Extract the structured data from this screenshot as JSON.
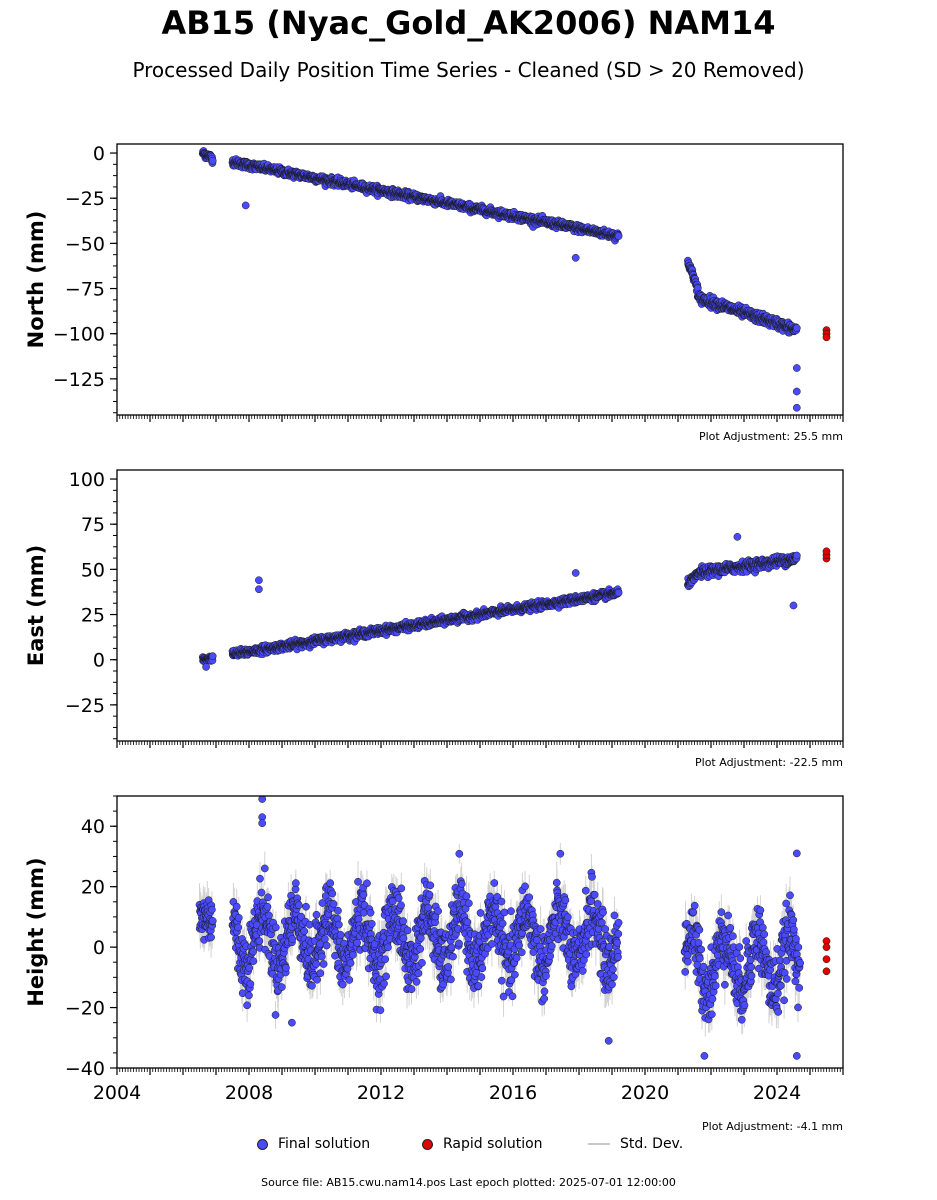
{
  "title": "AB15 (Nyac_Gold_AK2006) NAM14",
  "subtitle": "Processed Daily Position Time Series - Cleaned (SD > 20 Removed)",
  "legend": {
    "final": "Final solution",
    "rapid": "Rapid solution",
    "stddev": "Std. Dev."
  },
  "source_text": "Source file: AB15.cwu.nam14.pos  Last epoch plotted: 2025-07-01 12:00:00",
  "colors": {
    "final": "#4a4aff",
    "rapid": "#e00000",
    "stddev": "#c8c8c8",
    "edge": "#1a1a1a"
  },
  "chart_data": [
    {
      "type": "scatter",
      "ylabel": "North (mm)",
      "adjustment": "Plot Adjustment: 25.5 mm",
      "xlim": [
        2004,
        2026
      ],
      "ylim": [
        -145,
        5
      ],
      "yticks": [
        0,
        -25,
        -50,
        -75,
        -100,
        -125
      ],
      "final_segments": [
        {
          "x": [
            2006.6,
            2006.9
          ],
          "y": [
            0,
            -3
          ],
          "noise": 3
        },
        {
          "x": [
            2007.5,
            2019.2
          ],
          "y": [
            -5,
            -46
          ],
          "noise": 3
        },
        {
          "x": [
            2021.3,
            2021.6
          ],
          "y": [
            -60,
            -75
          ],
          "noise": 3
        },
        {
          "x": [
            2021.6,
            2024.6
          ],
          "y": [
            -80,
            -98
          ],
          "noise": 4
        }
      ],
      "final_outliers": [
        {
          "x": 2007.9,
          "y": -29
        },
        {
          "x": 2024.6,
          "y": -119
        },
        {
          "x": 2024.6,
          "y": -132
        },
        {
          "x": 2024.6,
          "y": -141
        },
        {
          "x": 2017.9,
          "y": -58
        }
      ],
      "rapid": [
        {
          "x": 2025.5,
          "y": -98
        },
        {
          "x": 2025.5,
          "y": -100
        },
        {
          "x": 2025.5,
          "y": -102
        }
      ],
      "stddev": false
    },
    {
      "type": "scatter",
      "ylabel": "East (mm)",
      "adjustment": "Plot Adjustment: -22.5 mm",
      "xlim": [
        2004,
        2026
      ],
      "ylim": [
        -45,
        105
      ],
      "yticks": [
        100,
        75,
        50,
        25,
        0,
        -25
      ],
      "final_segments": [
        {
          "x": [
            2006.6,
            2006.9
          ],
          "y": [
            0,
            1
          ],
          "noise": 2
        },
        {
          "x": [
            2007.5,
            2019.2
          ],
          "y": [
            3,
            37
          ],
          "noise": 3
        },
        {
          "x": [
            2021.3,
            2021.6
          ],
          "y": [
            42,
            47
          ],
          "noise": 3
        },
        {
          "x": [
            2021.6,
            2024.6
          ],
          "y": [
            48,
            56
          ],
          "noise": 4
        }
      ],
      "final_outliers": [
        {
          "x": 2008.3,
          "y": 44
        },
        {
          "x": 2008.3,
          "y": 39
        },
        {
          "x": 2024.5,
          "y": 30
        },
        {
          "x": 2006.7,
          "y": -4
        },
        {
          "x": 2022.8,
          "y": 68
        },
        {
          "x": 2017.9,
          "y": 48
        }
      ],
      "rapid": [
        {
          "x": 2025.5,
          "y": 56
        },
        {
          "x": 2025.5,
          "y": 58
        },
        {
          "x": 2025.5,
          "y": 60
        }
      ],
      "stddev": false
    },
    {
      "type": "scatter",
      "ylabel": "Height (mm)",
      "adjustment": "Plot Adjustment: -4.1 mm",
      "xlim": [
        2004,
        2026
      ],
      "ylim": [
        -40,
        50
      ],
      "yticks": [
        40,
        20,
        0,
        -20,
        -40
      ],
      "xticks": [
        2004,
        2008,
        2012,
        2016,
        2020,
        2024
      ],
      "final_segments": [
        {
          "x": [
            2006.5,
            2006.9
          ],
          "y": [
            10,
            10
          ],
          "noise": 12
        },
        {
          "x": [
            2007.5,
            2019.2
          ],
          "y": [
            3,
            3
          ],
          "noise": 16,
          "seasonal": 9
        },
        {
          "x": [
            2021.2,
            2024.7
          ],
          "y": [
            -5,
            -5
          ],
          "noise": 16,
          "seasonal": 9
        }
      ],
      "final_outliers": [
        {
          "x": 2008.4,
          "y": 49
        },
        {
          "x": 2008.4,
          "y": 43
        },
        {
          "x": 2008.4,
          "y": 41
        },
        {
          "x": 2024.6,
          "y": 31
        },
        {
          "x": 2024.6,
          "y": -36
        },
        {
          "x": 2021.8,
          "y": -36
        },
        {
          "x": 2018.9,
          "y": -31
        },
        {
          "x": 2009.3,
          "y": -25
        }
      ],
      "rapid": [
        {
          "x": 2025.5,
          "y": 2
        },
        {
          "x": 2025.5,
          "y": 0
        },
        {
          "x": 2025.5,
          "y": -4
        },
        {
          "x": 2025.5,
          "y": -8
        }
      ],
      "stddev": true
    }
  ]
}
